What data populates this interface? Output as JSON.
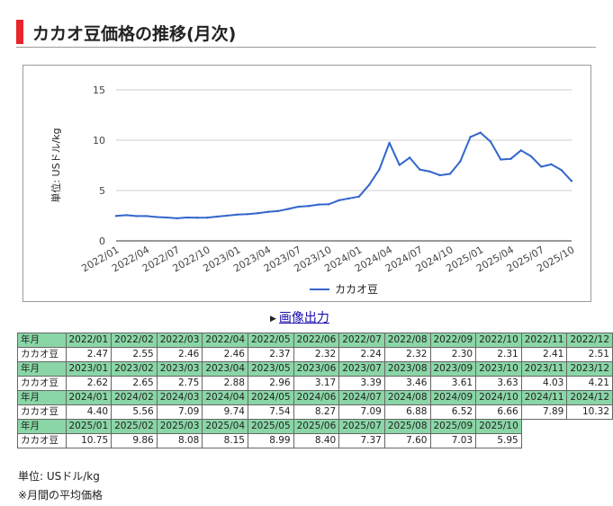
{
  "header": {
    "title": "カカオ豆価格の推移(月次)"
  },
  "chart_data": {
    "type": "line",
    "x": [
      "2022/01",
      "2022/02",
      "2022/03",
      "2022/04",
      "2022/05",
      "2022/06",
      "2022/07",
      "2022/08",
      "2022/09",
      "2022/10",
      "2022/11",
      "2022/12",
      "2023/01",
      "2023/02",
      "2023/03",
      "2023/04",
      "2023/05",
      "2023/06",
      "2023/07",
      "2023/08",
      "2023/09",
      "2023/10",
      "2023/11",
      "2023/12",
      "2024/01",
      "2024/02",
      "2024/03",
      "2024/04",
      "2024/05",
      "2024/06",
      "2024/07",
      "2024/08",
      "2024/09",
      "2024/10",
      "2024/11",
      "2024/12",
      "2025/01",
      "2025/02",
      "2025/03",
      "2025/04",
      "2025/05",
      "2025/06",
      "2025/07",
      "2025/08",
      "2025/09",
      "2025/10"
    ],
    "series": [
      {
        "name": "カカオ豆",
        "color": "#3366cc",
        "values": [
          2.47,
          2.55,
          2.46,
          2.46,
          2.37,
          2.32,
          2.24,
          2.32,
          2.3,
          2.31,
          2.41,
          2.51,
          2.62,
          2.65,
          2.75,
          2.88,
          2.96,
          3.17,
          3.39,
          3.46,
          3.61,
          3.63,
          4.03,
          4.21,
          4.4,
          5.56,
          7.09,
          9.74,
          7.54,
          8.27,
          7.09,
          6.88,
          6.52,
          6.66,
          7.89,
          10.32,
          10.75,
          9.86,
          8.08,
          8.15,
          8.99,
          8.4,
          7.37,
          7.6,
          7.03,
          5.95
        ]
      }
    ],
    "x_tick_labels": [
      "2022/01",
      "2022/04",
      "2022/07",
      "2022/10",
      "2023/01",
      "2023/04",
      "2023/07",
      "2023/10",
      "2024/01",
      "2024/04",
      "2024/07",
      "2024/10",
      "2025/01",
      "2025/04",
      "2025/07",
      "2025/10"
    ],
    "y_ticks": [
      "0",
      "5",
      "10",
      "15"
    ],
    "ylabel": "単位: USドル/kg",
    "xlabel": "",
    "ylim": [
      0,
      15
    ],
    "grid": true,
    "legend": "bottom"
  },
  "export": {
    "label": "画像出力"
  },
  "table": {
    "year_month_label": "年月",
    "item_name": "カカオ豆"
  },
  "notes": {
    "unit": "単位: USドル/kg",
    "avg": "※月間の平均価格"
  }
}
